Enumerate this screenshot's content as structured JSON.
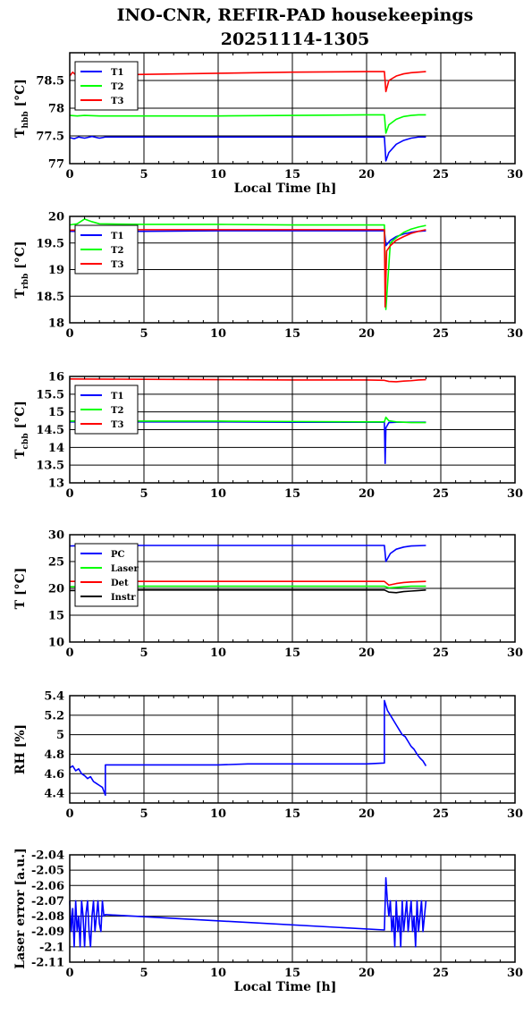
{
  "title_line1": "INO-CNR, REFIR-PAD housekeepings",
  "title_line2": "20251114-1305",
  "colors": {
    "blue": "#0000ff",
    "green": "#00ff00",
    "red": "#ff0000",
    "black": "#000000"
  },
  "chart_data": [
    {
      "type": "line",
      "ylabel": "T",
      "ylabel_sub": "hbb",
      "ylabel_unit": " [°C]",
      "xlabel": "Local Time [h]",
      "xlim": [
        0,
        30
      ],
      "ylim": [
        77,
        79
      ],
      "xticks": [
        0,
        5,
        10,
        15,
        20,
        25,
        30
      ],
      "yticks": [
        77,
        77.5,
        78,
        78.5
      ],
      "ytick_labels": [
        "77",
        "77.5",
        "78",
        "78.5"
      ],
      "legend": [
        "T1",
        "T2",
        "T3"
      ],
      "series": [
        {
          "name": "T1",
          "color": "blue",
          "x": [
            0,
            0.3,
            0.6,
            1.0,
            1.5,
            2.0,
            2.4,
            5,
            10,
            15,
            20,
            21.2,
            21.3,
            21.5,
            22,
            22.5,
            23,
            23.5,
            24
          ],
          "y": [
            77.47,
            77.45,
            77.48,
            77.46,
            77.49,
            77.46,
            77.48,
            77.48,
            77.48,
            77.48,
            77.48,
            77.48,
            77.05,
            77.2,
            77.35,
            77.42,
            77.46,
            77.48,
            77.48
          ]
        },
        {
          "name": "T2",
          "color": "green",
          "x": [
            0,
            0.5,
            1,
            2,
            5,
            10,
            15,
            20,
            21.2,
            21.3,
            21.5,
            22,
            22.5,
            23,
            23.5,
            24
          ],
          "y": [
            77.87,
            77.86,
            77.87,
            77.86,
            77.86,
            77.86,
            77.87,
            77.88,
            77.88,
            77.55,
            77.7,
            77.8,
            77.85,
            77.87,
            77.88,
            77.88
          ]
        },
        {
          "name": "T3",
          "color": "red",
          "x": [
            0,
            0.2,
            0.4,
            0.6,
            0.8,
            1.0,
            1.2,
            1.5,
            1.8,
            2.0,
            2.3,
            5,
            10,
            15,
            20,
            21.2,
            21.3,
            21.5,
            22,
            22.5,
            23,
            23.5,
            24
          ],
          "y": [
            78.58,
            78.65,
            78.6,
            78.66,
            78.58,
            78.64,
            78.6,
            78.66,
            78.6,
            78.64,
            78.6,
            78.61,
            78.63,
            78.65,
            78.66,
            78.66,
            78.3,
            78.5,
            78.58,
            78.62,
            78.64,
            78.65,
            78.66
          ]
        }
      ]
    },
    {
      "type": "line",
      "ylabel": "T",
      "ylabel_sub": "rbb",
      "ylabel_unit": " [°C]",
      "xlabel": "",
      "xlim": [
        0,
        30
      ],
      "ylim": [
        18,
        20
      ],
      "xticks": [
        0,
        5,
        10,
        15,
        20,
        25,
        30
      ],
      "yticks": [
        18,
        18.5,
        19,
        19.5,
        20
      ],
      "ytick_labels": [
        "18",
        "18.5",
        "19",
        "19.5",
        "20"
      ],
      "legend": [
        "T1",
        "T2",
        "T3"
      ],
      "series": [
        {
          "name": "T1",
          "color": "blue",
          "x": [
            0,
            5,
            10,
            15,
            20,
            21.2,
            21.3,
            21.6,
            22,
            22.5,
            23,
            23.5,
            24
          ],
          "y": [
            19.72,
            19.72,
            19.73,
            19.73,
            19.73,
            19.73,
            19.45,
            19.55,
            19.62,
            19.67,
            19.7,
            19.72,
            19.73
          ]
        },
        {
          "name": "T2",
          "color": "green",
          "x": [
            0,
            0.5,
            1,
            1.5,
            2,
            5,
            10,
            15,
            20,
            21.2,
            21.3,
            21.6,
            22,
            22.5,
            23,
            23.5,
            24
          ],
          "y": [
            19.84,
            19.86,
            19.95,
            19.9,
            19.86,
            19.85,
            19.85,
            19.84,
            19.84,
            19.84,
            18.25,
            19.5,
            19.6,
            19.7,
            19.76,
            19.8,
            19.83
          ]
        },
        {
          "name": "T3",
          "color": "red",
          "x": [
            0,
            5,
            10,
            15,
            20,
            21.2,
            21.25,
            21.35,
            21.6,
            22,
            22.5,
            23,
            23.5,
            24
          ],
          "y": [
            19.74,
            19.75,
            19.75,
            19.75,
            19.75,
            19.75,
            18.3,
            19.35,
            19.45,
            19.55,
            19.62,
            19.68,
            19.72,
            19.75
          ]
        }
      ]
    },
    {
      "type": "line",
      "ylabel": "T",
      "ylabel_sub": "cbb",
      "ylabel_unit": " [°C]",
      "xlabel": "",
      "xlim": [
        0,
        30
      ],
      "ylim": [
        13,
        16
      ],
      "xticks": [
        0,
        5,
        10,
        15,
        20,
        25,
        30
      ],
      "yticks": [
        13,
        13.5,
        14,
        14.5,
        15,
        15.5,
        16
      ],
      "ytick_labels": [
        "13",
        "13.5",
        "14",
        "14.5",
        "15",
        "15.5",
        "16"
      ],
      "legend": [
        "T1",
        "T2",
        "T3"
      ],
      "series": [
        {
          "name": "T1",
          "color": "blue",
          "x": [
            0,
            5,
            10,
            15,
            20,
            21.2,
            21.25,
            21.3,
            21.5,
            22,
            23,
            24
          ],
          "y": [
            14.72,
            14.72,
            14.72,
            14.71,
            14.71,
            14.71,
            13.55,
            14.55,
            14.7,
            14.71,
            14.71,
            14.71
          ]
        },
        {
          "name": "T2",
          "color": "green",
          "x": [
            0,
            5,
            10,
            15,
            20,
            21.2,
            21.3,
            21.5,
            22,
            23,
            24
          ],
          "y": [
            14.74,
            14.74,
            14.74,
            14.73,
            14.72,
            14.72,
            14.85,
            14.75,
            14.72,
            14.7,
            14.7
          ]
        },
        {
          "name": "T3",
          "color": "red",
          "x": [
            0,
            5,
            10,
            15,
            20,
            21.2,
            21.5,
            22,
            22.5,
            23,
            23.5,
            24
          ],
          "y": [
            15.93,
            15.92,
            15.91,
            15.9,
            15.9,
            15.89,
            15.86,
            15.85,
            15.87,
            15.88,
            15.9,
            15.91
          ]
        }
      ]
    },
    {
      "type": "line",
      "ylabel": "T",
      "ylabel_sub": "",
      "ylabel_unit": " [°C]",
      "xlabel": "",
      "xlim": [
        0,
        30
      ],
      "ylim": [
        10,
        30
      ],
      "xticks": [
        0,
        5,
        10,
        15,
        20,
        25,
        30
      ],
      "yticks": [
        10,
        15,
        20,
        25,
        30
      ],
      "ytick_labels": [
        "10",
        "15",
        "20",
        "25",
        "30"
      ],
      "legend": [
        "PC",
        "Laser",
        "Det",
        "Instr"
      ],
      "series": [
        {
          "name": "PC",
          "color": "blue",
          "x": [
            0,
            2,
            5,
            10,
            15,
            20,
            21.2,
            21.3,
            21.6,
            22,
            22.5,
            23,
            24
          ],
          "y": [
            27.9,
            28.0,
            28.0,
            28.0,
            28.0,
            28.0,
            28.0,
            25.0,
            26.5,
            27.3,
            27.7,
            27.9,
            28.0
          ]
        },
        {
          "name": "Laser",
          "color": "green",
          "x": [
            0,
            5,
            10,
            15,
            20,
            21.2,
            21.5,
            22,
            22.5,
            23,
            24
          ],
          "y": [
            20.3,
            20.4,
            20.4,
            20.4,
            20.4,
            20.4,
            20.1,
            20.2,
            20.3,
            20.4,
            20.4
          ]
        },
        {
          "name": "Det",
          "color": "red",
          "x": [
            0,
            5,
            10,
            15,
            20,
            21.2,
            21.5,
            22,
            22.5,
            23,
            24
          ],
          "y": [
            21.3,
            21.3,
            21.3,
            21.3,
            21.3,
            21.3,
            20.6,
            20.9,
            21.1,
            21.2,
            21.3
          ]
        },
        {
          "name": "Instr",
          "color": "black",
          "x": [
            0,
            5,
            10,
            15,
            20,
            21.2,
            21.5,
            22,
            22.5,
            23,
            23.5,
            24
          ],
          "y": [
            19.6,
            19.7,
            19.7,
            19.7,
            19.7,
            19.7,
            19.3,
            19.2,
            19.4,
            19.5,
            19.6,
            19.7
          ]
        }
      ]
    },
    {
      "type": "line",
      "ylabel": "RH [%]",
      "ylabel_sub": "",
      "ylabel_unit": "",
      "xlabel": "",
      "xlim": [
        0,
        30
      ],
      "ylim": [
        4.3,
        5.4
      ],
      "xticks": [
        0,
        5,
        10,
        15,
        20,
        25,
        30
      ],
      "yticks": [
        4.4,
        4.6,
        4.8,
        5,
        5.2,
        5.4
      ],
      "ytick_labels": [
        "4.4",
        "4.6",
        "4.8",
        "5",
        "5.2",
        "5.4"
      ],
      "legend": [],
      "series": [
        {
          "name": "RH",
          "color": "blue",
          "x": [
            0,
            0.2,
            0.4,
            0.6,
            0.8,
            1.0,
            1.2,
            1.4,
            1.6,
            1.8,
            2.0,
            2.2,
            2.4,
            2.4,
            5,
            10,
            12,
            15,
            20,
            21.2,
            21.2,
            21.4,
            21.6,
            21.8,
            22,
            22.2,
            22.4,
            22.6,
            22.8,
            23,
            23.2,
            23.4,
            23.6,
            23.8,
            24
          ],
          "y": [
            4.66,
            4.68,
            4.63,
            4.65,
            4.6,
            4.58,
            4.55,
            4.57,
            4.52,
            4.5,
            4.48,
            4.46,
            4.38,
            4.69,
            4.69,
            4.69,
            4.7,
            4.7,
            4.7,
            4.71,
            5.35,
            5.25,
            5.2,
            5.15,
            5.1,
            5.05,
            5.0,
            4.98,
            4.93,
            4.88,
            4.85,
            4.8,
            4.76,
            4.73,
            4.68
          ]
        }
      ]
    },
    {
      "type": "line",
      "ylabel": "Laser error [a.u.]",
      "ylabel_sub": "",
      "ylabel_unit": "",
      "xlabel": "Local Time [h]",
      "xlim": [
        0,
        30
      ],
      "ylim": [
        -2.11,
        -2.04
      ],
      "xticks": [
        0,
        5,
        10,
        15,
        20,
        25,
        30
      ],
      "yticks": [
        -2.11,
        -2.1,
        -2.09,
        -2.08,
        -2.07,
        -2.06,
        -2.05,
        -2.04
      ],
      "ytick_labels": [
        "-2.11",
        "-2.1",
        "-2.09",
        "-2.08",
        "-2.07",
        "-2.06",
        "-2.05",
        "-2.04"
      ],
      "legend": [],
      "series": [
        {
          "name": "Laser error",
          "color": "blue",
          "x": [
            0,
            0.1,
            0.2,
            0.3,
            0.4,
            0.5,
            0.6,
            0.7,
            0.8,
            0.9,
            1.0,
            1.1,
            1.2,
            1.3,
            1.4,
            1.5,
            1.6,
            1.7,
            1.8,
            1.9,
            2.0,
            2.1,
            2.2,
            2.3,
            2.4,
            21.2,
            21.3,
            21.4,
            21.5,
            21.6,
            21.7,
            21.8,
            21.9,
            22.0,
            22.1,
            22.2,
            22.3,
            22.4,
            22.5,
            22.6,
            22.7,
            22.8,
            22.9,
            23.0,
            23.1,
            23.2,
            23.3,
            23.4,
            23.5,
            23.6,
            23.7,
            23.8,
            23.9,
            24.0
          ],
          "y": [
            -2.07,
            -2.09,
            -2.075,
            -2.1,
            -2.07,
            -2.09,
            -2.08,
            -2.1,
            -2.07,
            -2.08,
            -2.1,
            -2.078,
            -2.07,
            -2.09,
            -2.1,
            -2.08,
            -2.07,
            -2.09,
            -2.08,
            -2.07,
            -2.085,
            -2.09,
            -2.07,
            -2.08,
            -2.079,
            -2.089,
            -2.055,
            -2.07,
            -2.08,
            -2.07,
            -2.09,
            -2.08,
            -2.1,
            -2.07,
            -2.09,
            -2.08,
            -2.1,
            -2.07,
            -2.09,
            -2.08,
            -2.07,
            -2.09,
            -2.08,
            -2.07,
            -2.09,
            -2.08,
            -2.1,
            -2.07,
            -2.09,
            -2.08,
            -2.07,
            -2.09,
            -2.08,
            -2.07
          ]
        }
      ]
    }
  ]
}
